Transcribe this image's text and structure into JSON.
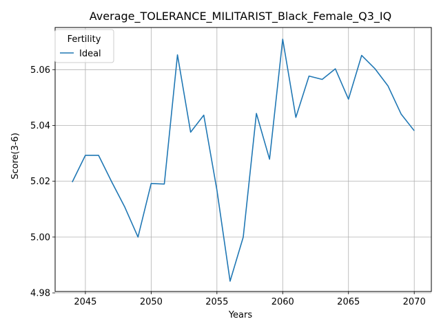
{
  "chart_data": {
    "type": "line",
    "title": "Average_TOLERANCE_MILITARIST_Black_Female_Q3_IQ",
    "xlabel": "Years",
    "ylabel": "Score(3-6)",
    "xlim": [
      2042.7,
      2071.3
    ],
    "ylim": [
      4.9805,
      5.0751
    ],
    "x_ticks": [
      2045,
      2050,
      2055,
      2060,
      2065,
      2070
    ],
    "y_ticks": [
      4.98,
      5.0,
      5.02,
      5.04,
      5.06
    ],
    "y_tick_labels": [
      "4.98",
      "5.00",
      "5.02",
      "5.04",
      "5.06"
    ],
    "grid": true,
    "legend": {
      "title": "Fertility",
      "position": "upper-left"
    },
    "series": [
      {
        "name": "Ideal",
        "color": "#1f77b4",
        "x": [
          2044,
          2045,
          2046,
          2047,
          2048,
          2049,
          2050,
          2051,
          2052,
          2053,
          2054,
          2055,
          2056,
          2057,
          2058,
          2059,
          2060,
          2061,
          2062,
          2063,
          2064,
          2065,
          2066,
          2067,
          2068,
          2069,
          2070
        ],
        "values": [
          5.0197,
          5.0293,
          5.0293,
          5.0198,
          5.0107,
          5.0,
          5.0192,
          5.019,
          5.0653,
          5.0376,
          5.0437,
          5.0168,
          4.9842,
          5.0,
          5.0443,
          5.0279,
          5.0709,
          5.0429,
          5.0577,
          5.0565,
          5.0603,
          5.0494,
          5.0651,
          5.0604,
          5.0542,
          5.0441,
          5.0381
        ]
      }
    ]
  }
}
